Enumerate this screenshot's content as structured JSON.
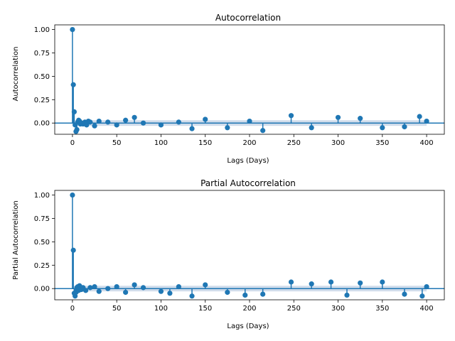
{
  "chart_data": [
    {
      "type": "stem",
      "title": "Autocorrelation",
      "xlabel": "Lags (Days)",
      "ylabel": "Autocorrelation",
      "xlim": [
        -20,
        420
      ],
      "ylim": [
        -0.12,
        1.05
      ],
      "xticks": [
        0,
        50,
        100,
        150,
        200,
        250,
        300,
        350,
        400
      ],
      "yticks": [
        0.0,
        0.25,
        0.5,
        0.75,
        1.0
      ],
      "ytick_labels": [
        "0.00",
        "0.25",
        "0.50",
        "0.75",
        "1.00"
      ],
      "confidence_band": 0.03,
      "lags": [
        0,
        1,
        2,
        3,
        4,
        5,
        6,
        7,
        8,
        9,
        10,
        12,
        14,
        16,
        18,
        20,
        25,
        30,
        40,
        50,
        60,
        70,
        80,
        100,
        120,
        135,
        150,
        175,
        200,
        215,
        247,
        270,
        300,
        325,
        350,
        375,
        392,
        400
      ],
      "values": [
        1.0,
        0.41,
        0.12,
        -0.02,
        -0.09,
        -0.07,
        0.01,
        0.03,
        0.02,
        -0.01,
        0.0,
        -0.01,
        0.01,
        -0.02,
        0.02,
        0.01,
        -0.03,
        0.02,
        0.01,
        -0.02,
        0.03,
        0.06,
        0.0,
        -0.02,
        0.01,
        -0.06,
        0.04,
        -0.05,
        0.02,
        -0.08,
        0.08,
        -0.05,
        0.06,
        0.05,
        -0.05,
        -0.04,
        0.07,
        0.02
      ]
    },
    {
      "type": "stem",
      "title": "Partial Autocorrelation",
      "xlabel": "Lags (Days)",
      "ylabel": "Partial Autocorrelation",
      "xlim": [
        -20,
        420
      ],
      "ylim": [
        -0.12,
        1.05
      ],
      "xticks": [
        0,
        50,
        100,
        150,
        200,
        250,
        300,
        350,
        400
      ],
      "yticks": [
        0.0,
        0.25,
        0.5,
        0.75,
        1.0
      ],
      "ytick_labels": [
        "0.00",
        "0.25",
        "0.50",
        "0.75",
        "1.00"
      ],
      "confidence_band": 0.03,
      "lags": [
        0,
        1,
        2,
        3,
        4,
        5,
        6,
        7,
        8,
        10,
        12,
        15,
        20,
        25,
        30,
        40,
        50,
        60,
        70,
        80,
        100,
        110,
        120,
        135,
        150,
        175,
        195,
        215,
        247,
        270,
        292,
        310,
        325,
        350,
        375,
        395,
        400
      ],
      "values": [
        1.0,
        0.41,
        -0.05,
        -0.08,
        -0.04,
        0.01,
        0.02,
        -0.02,
        0.03,
        -0.01,
        0.01,
        -0.02,
        0.01,
        0.02,
        -0.03,
        0.0,
        0.02,
        -0.04,
        0.04,
        0.01,
        -0.03,
        -0.05,
        0.02,
        -0.08,
        0.04,
        -0.04,
        -0.07,
        -0.06,
        0.07,
        0.05,
        0.07,
        -0.07,
        0.06,
        0.07,
        -0.06,
        -0.08,
        0.02
      ]
    }
  ]
}
